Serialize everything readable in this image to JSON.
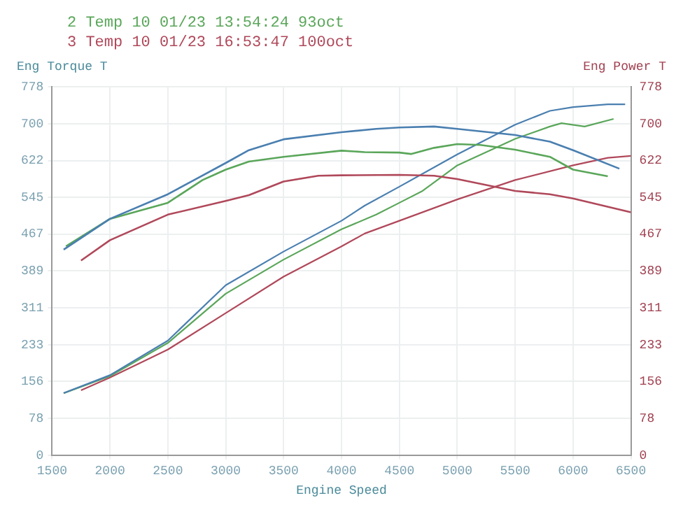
{
  "chart_data": {
    "type": "line",
    "xlabel": "Engine Speed",
    "ylabel": "Eng Torque T",
    "y2label": "Eng Power T",
    "legend": "top left",
    "grid": true,
    "marker": "none",
    "line_style": "solid",
    "xlim": [
      1500,
      6500
    ],
    "xticks": [
      1500,
      2000,
      2500,
      3000,
      3500,
      4000,
      4500,
      5000,
      5500,
      6000,
      6500
    ],
    "ylim": [
      0,
      778
    ],
    "yticks": [
      0,
      78,
      156,
      233,
      311,
      389,
      467,
      545,
      622,
      700,
      778
    ],
    "y2lim": [
      0,
      778
    ],
    "y2ticks": [
      0,
      78,
      156,
      233,
      311,
      389,
      467,
      545,
      622,
      700,
      778
    ],
    "series": [
      {
        "color": "#4a7fb0",
        "x": [
          1600,
          2000,
          2500,
          3000,
          3200,
          3500,
          4000,
          4300,
          4500,
          4800,
          5000,
          5500,
          5800,
          6000,
          6400
        ],
        "values": [
          434,
          499,
          551,
          617,
          644,
          667,
          682,
          689,
          692,
          694,
          689,
          676,
          662,
          644,
          605
        ]
      },
      {
        "name": "2 Temp 10 01/23 13:54:24 93oct",
        "color": "#5aa65a",
        "x": [
          1620,
          2000,
          2500,
          2800,
          3000,
          3200,
          3500,
          4000,
          4200,
          4500,
          4600,
          4800,
          5000,
          5200,
          5500,
          5800,
          6000,
          6300
        ],
        "values": [
          441,
          499,
          533,
          581,
          603,
          620,
          630,
          643,
          640,
          639,
          636,
          649,
          657,
          655,
          645,
          630,
          603,
          589
        ]
      },
      {
        "name": "3 Temp 10 01/23 16:53:47 100oct",
        "color": "#b0485a",
        "x": [
          1750,
          2000,
          2500,
          3000,
          3200,
          3500,
          3800,
          4000,
          4500,
          4800,
          5000,
          5500,
          5800,
          6000,
          6500
        ],
        "values": [
          411,
          454,
          508,
          537,
          549,
          578,
          590,
          591,
          592,
          590,
          583,
          558,
          551,
          542,
          513
        ]
      },
      {
        "color": "#4a7fb0",
        "axis": "y2",
        "x": [
          1600,
          2000,
          2500,
          3000,
          3500,
          4000,
          4200,
          4500,
          5000,
          5500,
          5800,
          6000,
          6300,
          6450
        ],
        "values": [
          131,
          169,
          242,
          359,
          430,
          495,
          527,
          567,
          635,
          698,
          727,
          735,
          741,
          741
        ]
      },
      {
        "color": "#5aa65a",
        "axis": "y2",
        "x": [
          1600,
          2000,
          2500,
          3000,
          3500,
          4000,
          4300,
          4500,
          4700,
          5000,
          5500,
          5800,
          5900,
          6100,
          6350
        ],
        "values": [
          131,
          167,
          237,
          341,
          413,
          477,
          508,
          533,
          558,
          612,
          668,
          694,
          701,
          694,
          710
        ]
      },
      {
        "color": "#b0485a",
        "axis": "y2",
        "x": [
          1750,
          2000,
          2500,
          3000,
          3500,
          4000,
          4200,
          4500,
          5000,
          5500,
          6000,
          6300,
          6500
        ],
        "values": [
          137,
          164,
          223,
          300,
          377,
          441,
          468,
          495,
          540,
          581,
          612,
          628,
          632
        ]
      }
    ]
  }
}
